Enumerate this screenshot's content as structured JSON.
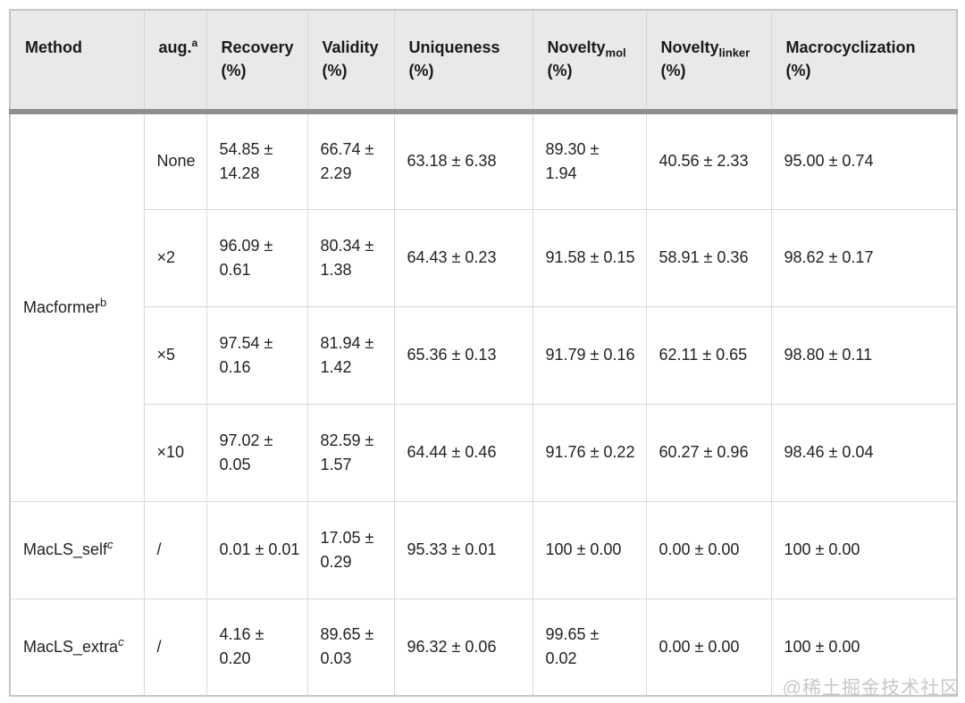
{
  "table": {
    "headers": [
      {
        "label": "Method"
      },
      {
        "label": "aug.",
        "sup": "a"
      },
      {
        "label": "Recovery",
        "unit": "(%)"
      },
      {
        "label": "Validity",
        "unit": "(%)"
      },
      {
        "label": "Uniqueness",
        "unit": "(%)"
      },
      {
        "label": "Novelty",
        "sub": "mol",
        "unit": "(%)"
      },
      {
        "label": "Novelty",
        "sub": "linker",
        "unit": "(%)"
      },
      {
        "label": "Macrocyclization",
        "unit": "(%)"
      }
    ],
    "methods": [
      {
        "label": "Macformer",
        "sup": "b"
      },
      {
        "label": "MacLS_self",
        "sup": "c"
      },
      {
        "label": "MacLS_extra",
        "sup": "c"
      }
    ],
    "rows": [
      {
        "aug": "None",
        "recovery": "54.85 ±\n14.28",
        "validity": "66.74 ±\n2.29",
        "uniqueness": "63.18 ± 6.38",
        "novelty_mol": "89.30 ±\n1.94",
        "novelty_linker": "40.56 ± 2.33",
        "macrocyclization": "95.00 ± 0.74"
      },
      {
        "aug": "×2",
        "recovery": "96.09 ±\n0.61",
        "validity": "80.34 ±\n1.38",
        "uniqueness": "64.43 ± 0.23",
        "novelty_mol": "91.58 ± 0.15",
        "novelty_linker": "58.91 ± 0.36",
        "macrocyclization": "98.62 ± 0.17"
      },
      {
        "aug": "×5",
        "recovery": "97.54 ±\n0.16",
        "validity": "81.94 ±\n1.42",
        "uniqueness": "65.36 ± 0.13",
        "novelty_mol": "91.79 ± 0.16",
        "novelty_linker": "62.11 ± 0.65",
        "macrocyclization": "98.80 ± 0.11"
      },
      {
        "aug": "×10",
        "recovery": "97.02 ±\n0.05",
        "validity": "82.59 ±\n1.57",
        "uniqueness": "64.44 ± 0.46",
        "novelty_mol": "91.76 ± 0.22",
        "novelty_linker": "60.27 ± 0.96",
        "macrocyclization": "98.46 ± 0.04"
      },
      {
        "aug": "/",
        "recovery": "0.01 ± 0.01",
        "validity": "17.05 ±\n0.29",
        "uniqueness": "95.33 ± 0.01",
        "novelty_mol": "100 ± 0.00",
        "novelty_linker": "0.00 ± 0.00",
        "macrocyclization": "100 ± 0.00"
      },
      {
        "aug": "/",
        "recovery": "4.16 ±\n0.20",
        "validity": "89.65 ±\n0.03",
        "uniqueness": "96.32 ± 0.06",
        "novelty_mol": "99.65 ±\n0.02",
        "novelty_linker": "0.00 ± 0.00",
        "macrocyclization": "100 ± 0.00"
      }
    ]
  },
  "watermark": "@稀土掘金技术社区",
  "colors": {
    "header_bg": "#e9e9e9",
    "header_separator": "#8f8f8f",
    "cell_border": "#d9d9d9",
    "outer_border": "#c6c6c6",
    "text": "#222222",
    "watermark": "#c8c8c8"
  }
}
